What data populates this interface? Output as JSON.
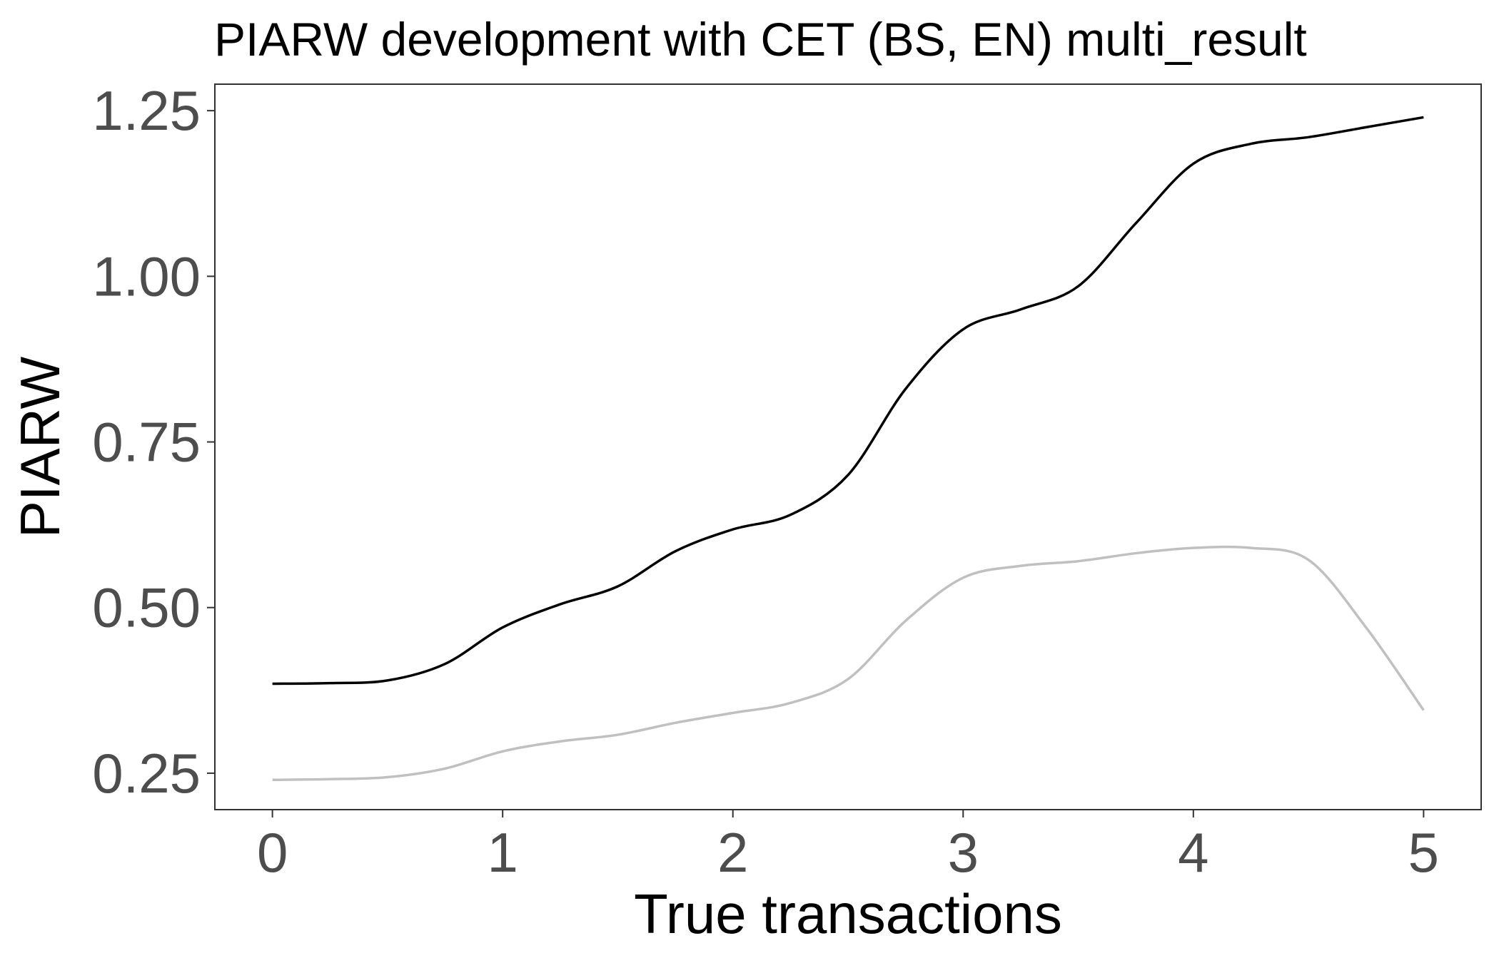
{
  "chart_data": {
    "type": "line",
    "title": "PIARW development with CET (BS, EN) multi_result",
    "xlabel": "True transactions",
    "ylabel": "PIARW",
    "xlim": [
      -0.25,
      5.25
    ],
    "ylim": [
      0.195,
      1.29
    ],
    "x_ticks": [
      "0",
      "1",
      "2",
      "3",
      "4",
      "5"
    ],
    "y_ticks": [
      "0.25",
      "0.50",
      "0.75",
      "1.00",
      "1.25"
    ],
    "grid": false,
    "legend": "none",
    "series": [
      {
        "color": "#000000",
        "x": [
          0,
          0.25,
          0.5,
          0.75,
          1.0,
          1.25,
          1.5,
          1.75,
          2.0,
          2.25,
          2.5,
          2.75,
          3.0,
          3.25,
          3.5,
          3.75,
          4.0,
          4.25,
          4.5,
          4.75,
          5.0
        ],
        "values": [
          0.385,
          0.386,
          0.39,
          0.415,
          0.47,
          0.505,
          0.532,
          0.585,
          0.618,
          0.64,
          0.7,
          0.83,
          0.92,
          0.95,
          0.985,
          1.08,
          1.17,
          1.2,
          1.21,
          1.225,
          1.24
        ]
      },
      {
        "color": "#c0c0c0",
        "x": [
          0,
          0.25,
          0.5,
          0.75,
          1.0,
          1.25,
          1.5,
          1.75,
          2.0,
          2.25,
          2.5,
          2.75,
          3.0,
          3.25,
          3.5,
          3.75,
          4.0,
          4.25,
          4.5,
          4.75,
          5.0
        ],
        "values": [
          0.24,
          0.241,
          0.244,
          0.257,
          0.283,
          0.298,
          0.308,
          0.326,
          0.341,
          0.356,
          0.392,
          0.48,
          0.545,
          0.563,
          0.57,
          0.582,
          0.59,
          0.59,
          0.572,
          0.47,
          0.345
        ]
      }
    ]
  }
}
